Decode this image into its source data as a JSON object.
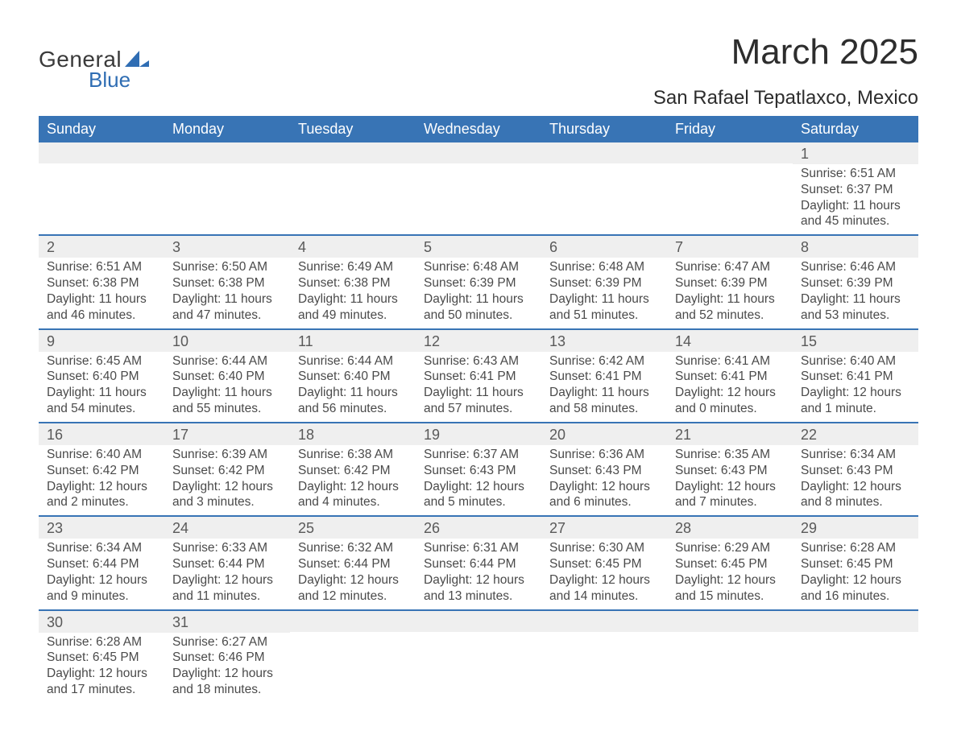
{
  "logo": {
    "word1": "General",
    "word2": "Blue",
    "shape_color": "#2f6db3",
    "text_color_general": "#3a3a3a",
    "text_color_blue": "#2f6db3"
  },
  "title": "March 2025",
  "location": "San Rafael Tepatlaxco, Mexico",
  "header_bg": "#3874b5",
  "row_divider_color": "#3874b5",
  "daynum_bg": "#efefef",
  "day_headers": [
    "Sunday",
    "Monday",
    "Tuesday",
    "Wednesday",
    "Thursday",
    "Friday",
    "Saturday"
  ],
  "weeks": [
    [
      {
        "num": "",
        "sunrise": "",
        "sunset": "",
        "daylight": ""
      },
      {
        "num": "",
        "sunrise": "",
        "sunset": "",
        "daylight": ""
      },
      {
        "num": "",
        "sunrise": "",
        "sunset": "",
        "daylight": ""
      },
      {
        "num": "",
        "sunrise": "",
        "sunset": "",
        "daylight": ""
      },
      {
        "num": "",
        "sunrise": "",
        "sunset": "",
        "daylight": ""
      },
      {
        "num": "",
        "sunrise": "",
        "sunset": "",
        "daylight": ""
      },
      {
        "num": "1",
        "sunrise": "Sunrise: 6:51 AM",
        "sunset": "Sunset: 6:37 PM",
        "daylight": "Daylight: 11 hours and 45 minutes."
      }
    ],
    [
      {
        "num": "2",
        "sunrise": "Sunrise: 6:51 AM",
        "sunset": "Sunset: 6:38 PM",
        "daylight": "Daylight: 11 hours and 46 minutes."
      },
      {
        "num": "3",
        "sunrise": "Sunrise: 6:50 AM",
        "sunset": "Sunset: 6:38 PM",
        "daylight": "Daylight: 11 hours and 47 minutes."
      },
      {
        "num": "4",
        "sunrise": "Sunrise: 6:49 AM",
        "sunset": "Sunset: 6:38 PM",
        "daylight": "Daylight: 11 hours and 49 minutes."
      },
      {
        "num": "5",
        "sunrise": "Sunrise: 6:48 AM",
        "sunset": "Sunset: 6:39 PM",
        "daylight": "Daylight: 11 hours and 50 minutes."
      },
      {
        "num": "6",
        "sunrise": "Sunrise: 6:48 AM",
        "sunset": "Sunset: 6:39 PM",
        "daylight": "Daylight: 11 hours and 51 minutes."
      },
      {
        "num": "7",
        "sunrise": "Sunrise: 6:47 AM",
        "sunset": "Sunset: 6:39 PM",
        "daylight": "Daylight: 11 hours and 52 minutes."
      },
      {
        "num": "8",
        "sunrise": "Sunrise: 6:46 AM",
        "sunset": "Sunset: 6:39 PM",
        "daylight": "Daylight: 11 hours and 53 minutes."
      }
    ],
    [
      {
        "num": "9",
        "sunrise": "Sunrise: 6:45 AM",
        "sunset": "Sunset: 6:40 PM",
        "daylight": "Daylight: 11 hours and 54 minutes."
      },
      {
        "num": "10",
        "sunrise": "Sunrise: 6:44 AM",
        "sunset": "Sunset: 6:40 PM",
        "daylight": "Daylight: 11 hours and 55 minutes."
      },
      {
        "num": "11",
        "sunrise": "Sunrise: 6:44 AM",
        "sunset": "Sunset: 6:40 PM",
        "daylight": "Daylight: 11 hours and 56 minutes."
      },
      {
        "num": "12",
        "sunrise": "Sunrise: 6:43 AM",
        "sunset": "Sunset: 6:41 PM",
        "daylight": "Daylight: 11 hours and 57 minutes."
      },
      {
        "num": "13",
        "sunrise": "Sunrise: 6:42 AM",
        "sunset": "Sunset: 6:41 PM",
        "daylight": "Daylight: 11 hours and 58 minutes."
      },
      {
        "num": "14",
        "sunrise": "Sunrise: 6:41 AM",
        "sunset": "Sunset: 6:41 PM",
        "daylight": "Daylight: 12 hours and 0 minutes."
      },
      {
        "num": "15",
        "sunrise": "Sunrise: 6:40 AM",
        "sunset": "Sunset: 6:41 PM",
        "daylight": "Daylight: 12 hours and 1 minute."
      }
    ],
    [
      {
        "num": "16",
        "sunrise": "Sunrise: 6:40 AM",
        "sunset": "Sunset: 6:42 PM",
        "daylight": "Daylight: 12 hours and 2 minutes."
      },
      {
        "num": "17",
        "sunrise": "Sunrise: 6:39 AM",
        "sunset": "Sunset: 6:42 PM",
        "daylight": "Daylight: 12 hours and 3 minutes."
      },
      {
        "num": "18",
        "sunrise": "Sunrise: 6:38 AM",
        "sunset": "Sunset: 6:42 PM",
        "daylight": "Daylight: 12 hours and 4 minutes."
      },
      {
        "num": "19",
        "sunrise": "Sunrise: 6:37 AM",
        "sunset": "Sunset: 6:43 PM",
        "daylight": "Daylight: 12 hours and 5 minutes."
      },
      {
        "num": "20",
        "sunrise": "Sunrise: 6:36 AM",
        "sunset": "Sunset: 6:43 PM",
        "daylight": "Daylight: 12 hours and 6 minutes."
      },
      {
        "num": "21",
        "sunrise": "Sunrise: 6:35 AM",
        "sunset": "Sunset: 6:43 PM",
        "daylight": "Daylight: 12 hours and 7 minutes."
      },
      {
        "num": "22",
        "sunrise": "Sunrise: 6:34 AM",
        "sunset": "Sunset: 6:43 PM",
        "daylight": "Daylight: 12 hours and 8 minutes."
      }
    ],
    [
      {
        "num": "23",
        "sunrise": "Sunrise: 6:34 AM",
        "sunset": "Sunset: 6:44 PM",
        "daylight": "Daylight: 12 hours and 9 minutes."
      },
      {
        "num": "24",
        "sunrise": "Sunrise: 6:33 AM",
        "sunset": "Sunset: 6:44 PM",
        "daylight": "Daylight: 12 hours and 11 minutes."
      },
      {
        "num": "25",
        "sunrise": "Sunrise: 6:32 AM",
        "sunset": "Sunset: 6:44 PM",
        "daylight": "Daylight: 12 hours and 12 minutes."
      },
      {
        "num": "26",
        "sunrise": "Sunrise: 6:31 AM",
        "sunset": "Sunset: 6:44 PM",
        "daylight": "Daylight: 12 hours and 13 minutes."
      },
      {
        "num": "27",
        "sunrise": "Sunrise: 6:30 AM",
        "sunset": "Sunset: 6:45 PM",
        "daylight": "Daylight: 12 hours and 14 minutes."
      },
      {
        "num": "28",
        "sunrise": "Sunrise: 6:29 AM",
        "sunset": "Sunset: 6:45 PM",
        "daylight": "Daylight: 12 hours and 15 minutes."
      },
      {
        "num": "29",
        "sunrise": "Sunrise: 6:28 AM",
        "sunset": "Sunset: 6:45 PM",
        "daylight": "Daylight: 12 hours and 16 minutes."
      }
    ],
    [
      {
        "num": "30",
        "sunrise": "Sunrise: 6:28 AM",
        "sunset": "Sunset: 6:45 PM",
        "daylight": "Daylight: 12 hours and 17 minutes."
      },
      {
        "num": "31",
        "sunrise": "Sunrise: 6:27 AM",
        "sunset": "Sunset: 6:46 PM",
        "daylight": "Daylight: 12 hours and 18 minutes."
      },
      {
        "num": "",
        "sunrise": "",
        "sunset": "",
        "daylight": ""
      },
      {
        "num": "",
        "sunrise": "",
        "sunset": "",
        "daylight": ""
      },
      {
        "num": "",
        "sunrise": "",
        "sunset": "",
        "daylight": ""
      },
      {
        "num": "",
        "sunrise": "",
        "sunset": "",
        "daylight": ""
      },
      {
        "num": "",
        "sunrise": "",
        "sunset": "",
        "daylight": ""
      }
    ]
  ]
}
